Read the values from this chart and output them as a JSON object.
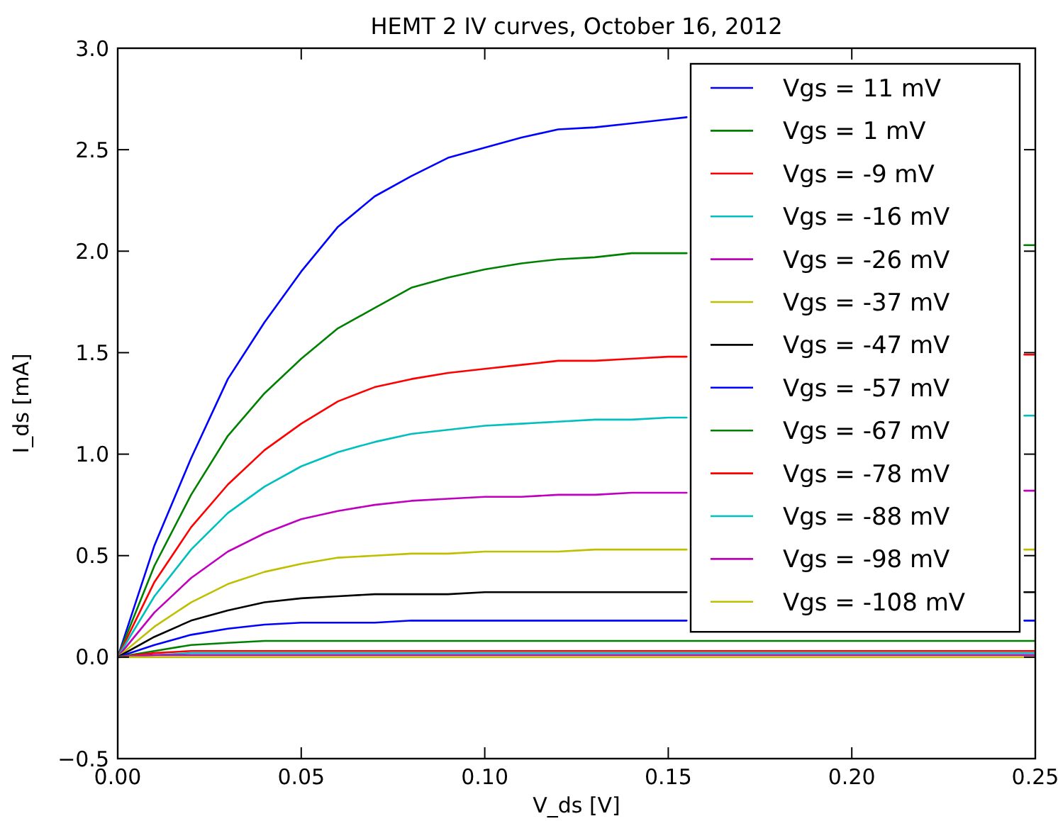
{
  "chart_data": {
    "type": "line",
    "title": "HEMT 2 IV curves, October 16, 2012",
    "xlabel": "V_ds [V]",
    "ylabel": "I_ds [mA]",
    "xlim": [
      0,
      0.25
    ],
    "ylim": [
      -0.5,
      3.0
    ],
    "xticks": [
      {
        "value": 0,
        "label": "0.00"
      },
      {
        "value": 0.05,
        "label": "0.05"
      },
      {
        "value": 0.1,
        "label": "0.10"
      },
      {
        "value": 0.15,
        "label": "0.15"
      },
      {
        "value": 0.2,
        "label": "0.20"
      },
      {
        "value": 0.25,
        "label": "0.25"
      }
    ],
    "yticks": [
      {
        "value": -0.5,
        "label": "−0.5"
      },
      {
        "value": 0,
        "label": "0.0"
      },
      {
        "value": 0.5,
        "label": "0.5"
      },
      {
        "value": 1,
        "label": "1.0"
      },
      {
        "value": 1.5,
        "label": "1.5"
      },
      {
        "value": 2,
        "label": "2.0"
      },
      {
        "value": 2.5,
        "label": "2.5"
      },
      {
        "value": 3,
        "label": "3.0"
      }
    ],
    "grid": false,
    "legend": "top right",
    "marker": "none",
    "line_style": "solid",
    "series": [
      {
        "name": "Vgs = 11 mV",
        "color": "#0000ff",
        "x": [
          0,
          0.01,
          0.02,
          0.03,
          0.04,
          0.05,
          0.06,
          0.07,
          0.08,
          0.09,
          0.1,
          0.11,
          0.12,
          0.13,
          0.14,
          0.15,
          0.155
        ],
        "values": [
          0,
          0.55,
          0.98,
          1.37,
          1.65,
          1.9,
          2.12,
          2.27,
          2.37,
          2.46,
          2.51,
          2.56,
          2.6,
          2.61,
          2.63,
          2.65,
          2.66
        ]
      },
      {
        "name": "Vgs = 1 mV",
        "color": "#008000",
        "x": [
          0,
          0.01,
          0.02,
          0.03,
          0.04,
          0.05,
          0.06,
          0.07,
          0.08,
          0.09,
          0.1,
          0.11,
          0.12,
          0.13,
          0.14,
          0.15,
          0.155,
          0.2,
          0.247,
          0.25
        ],
        "values": [
          0,
          0.45,
          0.8,
          1.09,
          1.3,
          1.47,
          1.62,
          1.72,
          1.82,
          1.87,
          1.91,
          1.94,
          1.96,
          1.97,
          1.99,
          1.99,
          1.99,
          null,
          2.03,
          2.03
        ]
      },
      {
        "name": "Vgs = -9 mV",
        "color": "#ff0000",
        "x": [
          0,
          0.01,
          0.02,
          0.03,
          0.04,
          0.05,
          0.06,
          0.07,
          0.08,
          0.09,
          0.1,
          0.11,
          0.12,
          0.13,
          0.14,
          0.15,
          0.155,
          0.2,
          0.247,
          0.25
        ],
        "values": [
          0,
          0.37,
          0.64,
          0.85,
          1.02,
          1.15,
          1.26,
          1.33,
          1.37,
          1.4,
          1.42,
          1.44,
          1.46,
          1.46,
          1.47,
          1.48,
          1.48,
          null,
          1.49,
          1.49
        ]
      },
      {
        "name": "Vgs = -16 mV",
        "color": "#00bfbf",
        "x": [
          0,
          0.01,
          0.02,
          0.03,
          0.04,
          0.05,
          0.06,
          0.07,
          0.08,
          0.09,
          0.1,
          0.11,
          0.12,
          0.13,
          0.14,
          0.15,
          0.155,
          0.2,
          0.247,
          0.25
        ],
        "values": [
          0,
          0.3,
          0.53,
          0.71,
          0.84,
          0.94,
          1.01,
          1.06,
          1.1,
          1.12,
          1.14,
          1.15,
          1.16,
          1.17,
          1.17,
          1.18,
          1.18,
          null,
          1.19,
          1.19
        ]
      },
      {
        "name": "Vgs = -26 mV",
        "color": "#bf00bf",
        "x": [
          0,
          0.01,
          0.02,
          0.03,
          0.04,
          0.05,
          0.06,
          0.07,
          0.08,
          0.09,
          0.1,
          0.11,
          0.12,
          0.13,
          0.14,
          0.15,
          0.155,
          0.2,
          0.247,
          0.25
        ],
        "values": [
          0,
          0.22,
          0.39,
          0.52,
          0.61,
          0.68,
          0.72,
          0.75,
          0.77,
          0.78,
          0.79,
          0.79,
          0.8,
          0.8,
          0.81,
          0.81,
          0.81,
          null,
          0.82,
          0.82
        ]
      },
      {
        "name": "Vgs = -37 mV",
        "color": "#bfbf00",
        "x": [
          0,
          0.01,
          0.02,
          0.03,
          0.04,
          0.05,
          0.06,
          0.07,
          0.08,
          0.09,
          0.1,
          0.11,
          0.12,
          0.13,
          0.14,
          0.15,
          0.155,
          0.2,
          0.247,
          0.25
        ],
        "values": [
          0,
          0.15,
          0.27,
          0.36,
          0.42,
          0.46,
          0.49,
          0.5,
          0.51,
          0.51,
          0.52,
          0.52,
          0.52,
          0.53,
          0.53,
          0.53,
          0.53,
          null,
          0.53,
          0.53
        ]
      },
      {
        "name": "Vgs = -47 mV",
        "color": "#000000",
        "x": [
          0,
          0.01,
          0.02,
          0.03,
          0.04,
          0.05,
          0.06,
          0.07,
          0.08,
          0.09,
          0.1,
          0.11,
          0.12,
          0.13,
          0.14,
          0.15,
          0.155,
          0.2,
          0.247,
          0.25
        ],
        "values": [
          0,
          0.1,
          0.18,
          0.23,
          0.27,
          0.29,
          0.3,
          0.31,
          0.31,
          0.31,
          0.32,
          0.32,
          0.32,
          0.32,
          0.32,
          0.32,
          0.32,
          null,
          0.32,
          0.32
        ]
      },
      {
        "name": "Vgs = -57 mV",
        "color": "#0000ff",
        "x": [
          0,
          0.01,
          0.02,
          0.03,
          0.04,
          0.05,
          0.06,
          0.07,
          0.08,
          0.09,
          0.1,
          0.11,
          0.12,
          0.13,
          0.14,
          0.15,
          0.155,
          0.2,
          0.247,
          0.25
        ],
        "values": [
          0,
          0.06,
          0.11,
          0.14,
          0.16,
          0.17,
          0.17,
          0.17,
          0.18,
          0.18,
          0.18,
          0.18,
          0.18,
          0.18,
          0.18,
          0.18,
          0.18,
          null,
          0.18,
          0.18
        ]
      },
      {
        "name": "Vgs = -67 mV",
        "color": "#008000",
        "x": [
          0,
          0.01,
          0.02,
          0.03,
          0.04,
          0.05,
          0.1,
          0.15,
          0.2,
          0.25
        ],
        "values": [
          0,
          0.03,
          0.06,
          0.07,
          0.08,
          0.08,
          0.08,
          0.08,
          0.08,
          0.08
        ]
      },
      {
        "name": "Vgs = -78 mV",
        "color": "#ff0000",
        "x": [
          0,
          0.01,
          0.02,
          0.03,
          0.04,
          0.05,
          0.1,
          0.15,
          0.2,
          0.25
        ],
        "values": [
          0,
          0.02,
          0.03,
          0.03,
          0.03,
          0.03,
          0.03,
          0.03,
          0.03,
          0.03
        ]
      },
      {
        "name": "Vgs = -88 mV",
        "color": "#00bfbf",
        "x": [
          0,
          0.01,
          0.02,
          0.03,
          0.04,
          0.05,
          0.1,
          0.15,
          0.2,
          0.25
        ],
        "values": [
          0,
          0.01,
          0.02,
          0.02,
          0.02,
          0.02,
          0.02,
          0.02,
          0.02,
          0.02
        ]
      },
      {
        "name": "Vgs = -98 mV",
        "color": "#bf00bf",
        "x": [
          0,
          0.01,
          0.02,
          0.03,
          0.04,
          0.05,
          0.1,
          0.15,
          0.2,
          0.25
        ],
        "values": [
          0,
          0.01,
          0.01,
          0.01,
          0.01,
          0.01,
          0.01,
          0.01,
          0.01,
          0.01
        ]
      },
      {
        "name": "Vgs = -108 mV",
        "color": "#bfbf00",
        "x": [
          0,
          0.01,
          0.02,
          0.03,
          0.04,
          0.05,
          0.1,
          0.15,
          0.2,
          0.25
        ],
        "values": [
          0,
          0,
          0,
          0,
          0,
          0,
          0,
          0,
          0,
          0
        ]
      }
    ]
  }
}
